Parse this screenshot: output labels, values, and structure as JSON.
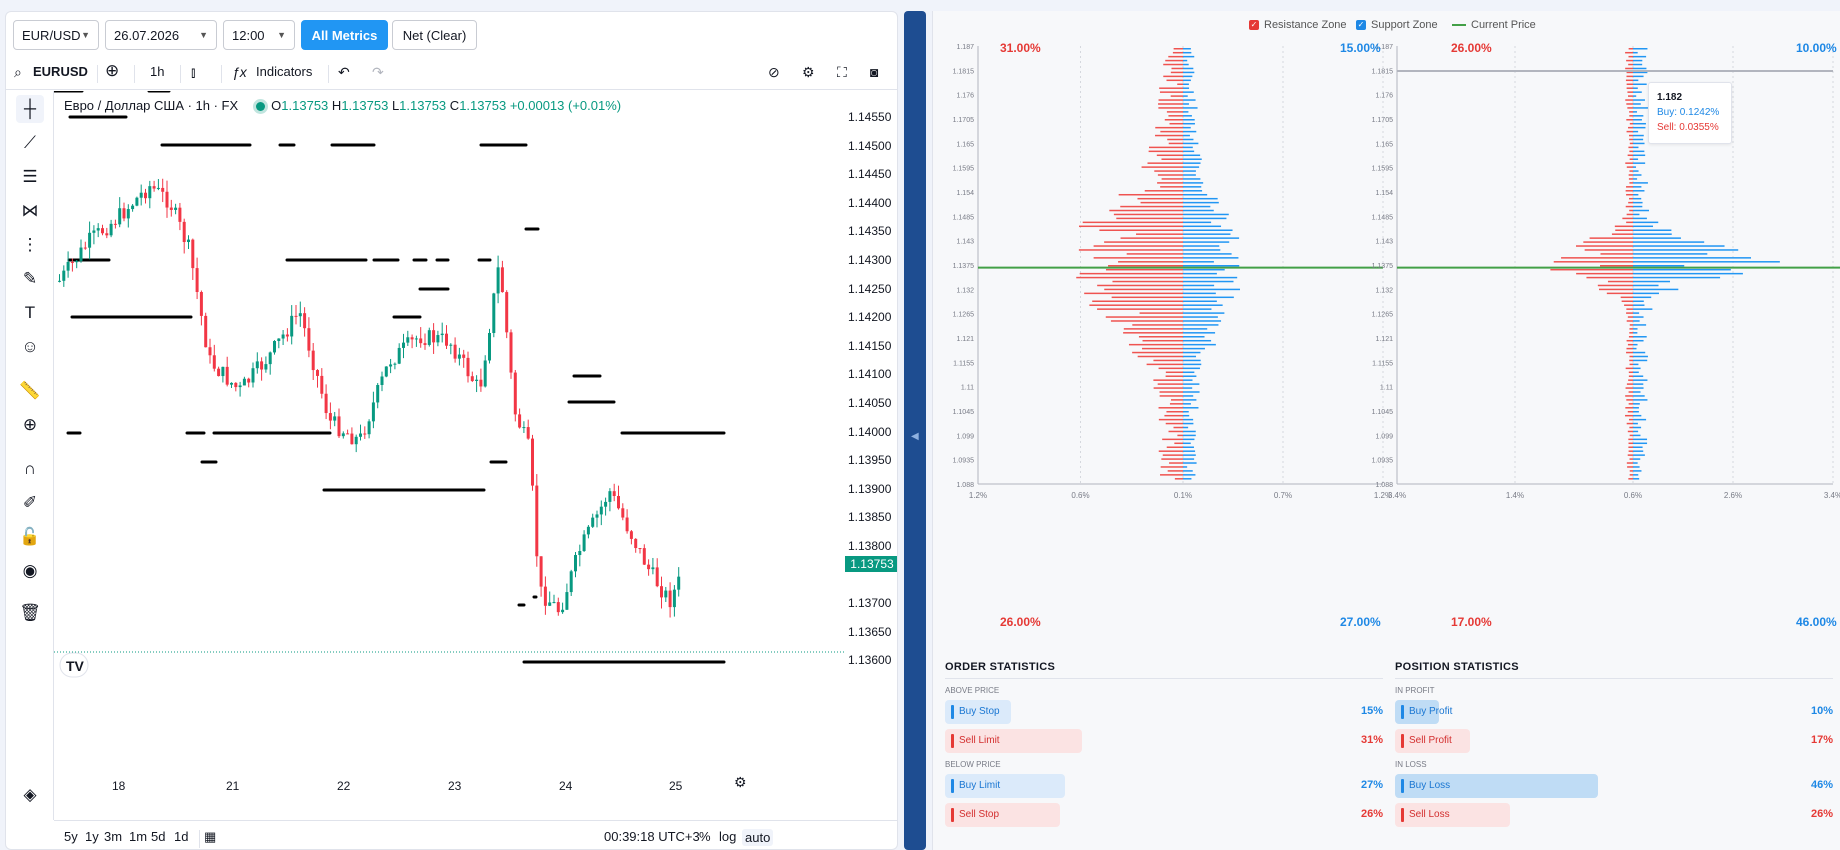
{
  "controls": {
    "pair": "EUR/USD",
    "date": "26.07.2026",
    "time": "12:00",
    "all_metrics": "All Metrics",
    "net": "Net (Clear)"
  },
  "toolbar": {
    "symbol": "EURUSD",
    "interval": "1h",
    "indicators": "Indicators"
  },
  "legend": {
    "title": "Евро / Доллар США · 1h · FX",
    "o_label": "O",
    "o": "1.13753",
    "h_label": "H",
    "h": "1.13753",
    "l_label": "L",
    "l": "1.13753",
    "c_label": "C",
    "c": "1.13753",
    "change": "+0.00013 (+0.01%)"
  },
  "price_scale": [
    "1.14550",
    "1.14500",
    "1.14450",
    "1.14400",
    "1.14350",
    "1.14300",
    "1.14250",
    "1.14200",
    "1.14150",
    "1.14100",
    "1.14050",
    "1.14000",
    "1.13950",
    "1.13900",
    "1.13850",
    "1.13800",
    "1.13700",
    "1.13650",
    "1.13600"
  ],
  "current_price": "1.13753",
  "dates": [
    "18",
    "21",
    "22",
    "23",
    "24",
    "25"
  ],
  "bottom": {
    "ranges": [
      "5y",
      "1y",
      "3m",
      "1m",
      "5d",
      "1d"
    ],
    "clock": "00:39:18 UTC+3",
    "pct": "%",
    "log": "log",
    "auto": "auto"
  },
  "right": {
    "legend": {
      "resistance": "Resistance Zone",
      "support": "Support Zone",
      "current": "Current Price"
    },
    "colors": {
      "resistance": "#ef5350",
      "support": "#2196f3",
      "current": "#43a047"
    },
    "orders_chart": {
      "top_left": "31.00%",
      "top_right": "15.00%",
      "bottom_left": "26.00%",
      "bottom_right": "27.00%",
      "y_ticks": [
        "1.187",
        "1.1815",
        "1.176",
        "1.1705",
        "1.165",
        "1.1595",
        "1.154",
        "1.1485",
        "1.143",
        "1.1375",
        "1.132",
        "1.1265",
        "1.121",
        "1.1155",
        "1.11",
        "1.1045",
        "1.099",
        "1.0935",
        "1.088"
      ],
      "x_ticks": [
        "1.2%",
        "0.6%",
        "0.1%",
        "0.7%",
        "1.2%"
      ]
    },
    "positions_chart": {
      "top_left": "26.00%",
      "top_right": "10.00%",
      "bottom_left": "17.00%",
      "bottom_right": "46.00%",
      "y_ticks": [
        "1.187",
        "1.1815",
        "1.176",
        "1.1705",
        "1.165",
        "1.1595",
        "1.154",
        "1.1485",
        "1.143",
        "1.1375",
        "1.132",
        "1.1265",
        "1.121",
        "1.1155",
        "1.11",
        "1.1045",
        "1.099",
        "1.0935",
        "1.088"
      ],
      "x_ticks": [
        "3.4%",
        "1.4%",
        "0.6%",
        "2.6%",
        "3.4%"
      ]
    },
    "tooltip": {
      "price": "1.182",
      "buy": "Buy: 0.1242%",
      "sell": "Sell: 0.0355%"
    },
    "order_stats": {
      "title": "ORDER STATISTICS",
      "above": "ABOVE PRICE",
      "below": "BELOW PRICE",
      "rows": [
        {
          "label": "Buy Stop",
          "value": "15%",
          "fill": 0.15
        },
        {
          "label": "Sell Limit",
          "value": "31%",
          "fill": 0.31
        },
        {
          "label": "Buy Limit",
          "value": "27%",
          "fill": 0.27
        },
        {
          "label": "Sell Stop",
          "value": "26%",
          "fill": 0.26
        }
      ]
    },
    "position_stats": {
      "title": "POSITION STATISTICS",
      "profit": "IN PROFIT",
      "loss": "IN LOSS",
      "rows": [
        {
          "label": "Buy Profit",
          "value": "10%",
          "fill": 0.1
        },
        {
          "label": "Sell Profit",
          "value": "17%",
          "fill": 0.17
        },
        {
          "label": "Buy Loss",
          "value": "46%",
          "fill": 0.46
        },
        {
          "label": "Sell Loss",
          "value": "26%",
          "fill": 0.26
        }
      ]
    }
  }
}
